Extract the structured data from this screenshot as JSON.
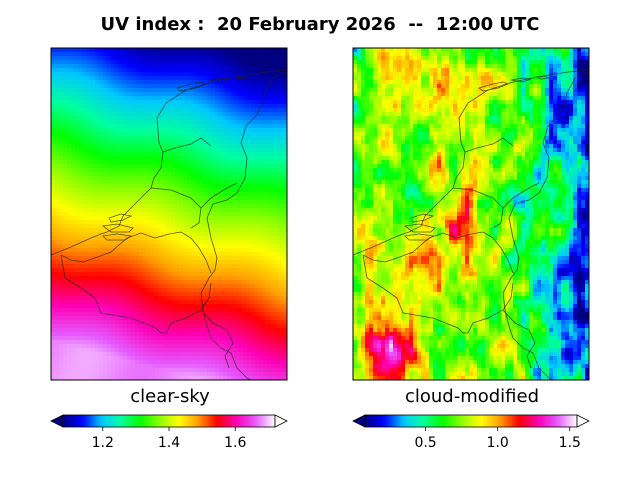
{
  "title": "UV index :  20 February 2026  --  12:00 UTC",
  "chart_data": [
    {
      "type": "heatmap",
      "panel_label": "clear-sky",
      "colormap": "gist_ncar",
      "colorbar": {
        "vmin": 1.08,
        "vmax": 1.72,
        "extend": "both",
        "ticks": [
          1.2,
          1.4,
          1.6
        ],
        "tick_labels": [
          "1.2",
          "1.4",
          "1.6"
        ]
      },
      "field": {
        "description": "smooth north-to-south gradient, increasing toward south",
        "north_value": 1.08,
        "south_value": 1.68
      }
    },
    {
      "type": "heatmap",
      "panel_label": "cloud-modified",
      "colormap": "gist_ncar",
      "colorbar": {
        "vmin": 0.08,
        "vmax": 1.55,
        "extend": "both",
        "ticks": [
          0.5,
          1.0,
          1.5
        ],
        "tick_labels": [
          "0.5",
          "1.0",
          "1.5"
        ]
      },
      "field": {
        "description": "patchy cloud-modified field; low values in the east, high values in the south-west"
      }
    }
  ],
  "colors": {
    "cmap_stops": [
      "#000080",
      "#0000ff",
      "#00c8ff",
      "#00ffa0",
      "#00ff00",
      "#8cff00",
      "#ffff00",
      "#ffa000",
      "#ff0000",
      "#ff00b4",
      "#e65aff",
      "#ffffff"
    ]
  }
}
